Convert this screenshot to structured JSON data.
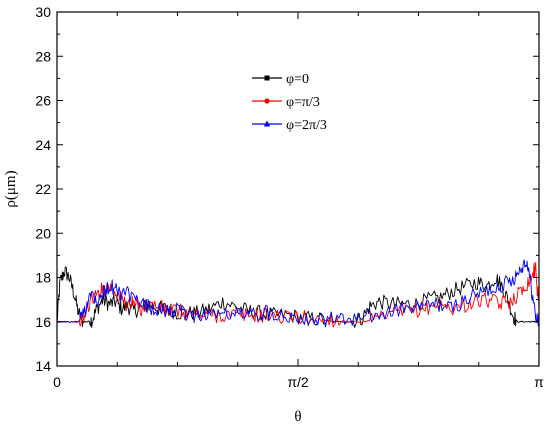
{
  "chart_data": {
    "type": "line",
    "title": "",
    "xlabel": "θ",
    "ylabel": "ρ(μm)",
    "xlim": [
      0,
      3.14159
    ],
    "ylim": [
      14,
      30
    ],
    "x_ticks": [
      {
        "value": 0,
        "label": "0"
      },
      {
        "value": 1.5708,
        "label": "π/2"
      },
      {
        "value": 3.14159,
        "label": "π"
      }
    ],
    "x_minor_ticks": [
      0.3927,
      0.7854,
      1.1781,
      1.9635,
      2.3562,
      2.7489
    ],
    "y_ticks": [
      14,
      16,
      18,
      20,
      22,
      24,
      26,
      28,
      30
    ],
    "y_tick_labels": [
      "14",
      "16",
      "18",
      "20",
      "22",
      "24",
      "26",
      "28",
      "30"
    ],
    "grid": false,
    "legend_position": "top-center",
    "series": [
      {
        "name": "φ=0",
        "color": "#000000",
        "marker": "square",
        "x": [
          0,
          0.02,
          0.05,
          0.08,
          0.11,
          0.14,
          0.17,
          0.2,
          0.23,
          0.26,
          0.3,
          0.34,
          0.38,
          0.42,
          0.46,
          0.5,
          0.55,
          0.6,
          0.66,
          0.72,
          0.78,
          0.85,
          0.92,
          1.0,
          1.08,
          1.16,
          1.24,
          1.32,
          1.4,
          1.5,
          1.6,
          1.7,
          1.8,
          1.9,
          1.98,
          2.04,
          2.1,
          2.18,
          2.26,
          2.34,
          2.42,
          2.5,
          2.58,
          2.66,
          2.74,
          2.8,
          2.86,
          2.9,
          2.94,
          2.97,
          3.0,
          3.04,
          3.08,
          3.12,
          3.14159
        ],
        "values": [
          16.0,
          17.8,
          18.3,
          18.0,
          17.3,
          16.4,
          16.0,
          16.0,
          16.1,
          16.6,
          17.0,
          16.8,
          16.9,
          16.6,
          16.7,
          16.5,
          16.6,
          16.8,
          16.6,
          16.6,
          16.4,
          16.4,
          16.4,
          16.6,
          16.9,
          16.7,
          16.5,
          16.4,
          16.3,
          16.3,
          16.2,
          16.1,
          16.0,
          16.0,
          16.1,
          16.7,
          16.9,
          16.8,
          16.8,
          16.8,
          17.0,
          17.1,
          17.4,
          17.6,
          17.8,
          17.6,
          18.0,
          17.6,
          17.0,
          16.3,
          16.0,
          16.0,
          16.0,
          16.0,
          16.0
        ]
      },
      {
        "name": "φ=π/3",
        "color": "#ff0000",
        "marker": "circle",
        "x": [
          0,
          0.05,
          0.1,
          0.14,
          0.18,
          0.22,
          0.26,
          0.3,
          0.34,
          0.38,
          0.42,
          0.46,
          0.5,
          0.55,
          0.6,
          0.66,
          0.72,
          0.78,
          0.85,
          0.92,
          1.0,
          1.08,
          1.16,
          1.24,
          1.32,
          1.4,
          1.5,
          1.6,
          1.7,
          1.8,
          1.9,
          2.0,
          2.1,
          2.2,
          2.3,
          2.4,
          2.48,
          2.56,
          2.64,
          2.72,
          2.8,
          2.88,
          2.94,
          3.0,
          3.05,
          3.09,
          3.12,
          3.14159
        ],
        "values": [
          16.0,
          16.0,
          16.0,
          16.0,
          16.2,
          17.0,
          17.2,
          17.5,
          17.6,
          17.4,
          17.0,
          16.8,
          16.8,
          16.6,
          16.8,
          16.7,
          16.5,
          16.5,
          16.4,
          16.3,
          16.3,
          16.3,
          16.3,
          16.3,
          16.3,
          16.3,
          16.2,
          16.2,
          16.1,
          16.1,
          16.0,
          16.0,
          16.1,
          16.4,
          16.5,
          16.6,
          16.8,
          16.6,
          16.7,
          16.9,
          17.0,
          16.8,
          16.9,
          17.2,
          17.6,
          18.0,
          18.5,
          16.5
        ]
      },
      {
        "name": "φ=2π/3",
        "color": "#0000ff",
        "marker": "triangle",
        "x": [
          0,
          0.05,
          0.1,
          0.14,
          0.18,
          0.22,
          0.26,
          0.3,
          0.34,
          0.38,
          0.42,
          0.46,
          0.5,
          0.55,
          0.6,
          0.66,
          0.72,
          0.78,
          0.85,
          0.92,
          1.0,
          1.08,
          1.16,
          1.24,
          1.32,
          1.4,
          1.5,
          1.6,
          1.7,
          1.8,
          1.9,
          2.0,
          2.1,
          2.2,
          2.3,
          2.4,
          2.48,
          2.56,
          2.64,
          2.72,
          2.8,
          2.88,
          2.94,
          2.98,
          3.02,
          3.06,
          3.09,
          3.12,
          3.14159
        ],
        "values": [
          16.0,
          16.0,
          16.0,
          16.0,
          16.5,
          17.4,
          17.0,
          17.3,
          17.6,
          17.5,
          17.2,
          17.3,
          17.0,
          16.8,
          16.7,
          16.5,
          16.5,
          16.5,
          16.3,
          16.3,
          16.4,
          16.3,
          16.4,
          16.3,
          16.4,
          16.4,
          16.3,
          16.2,
          16.1,
          16.1,
          16.1,
          16.2,
          16.3,
          16.5,
          16.6,
          16.7,
          16.8,
          16.6,
          16.9,
          17.2,
          17.4,
          17.6,
          17.8,
          18.0,
          18.4,
          18.8,
          17.6,
          16.2,
          16.0
        ]
      }
    ]
  }
}
